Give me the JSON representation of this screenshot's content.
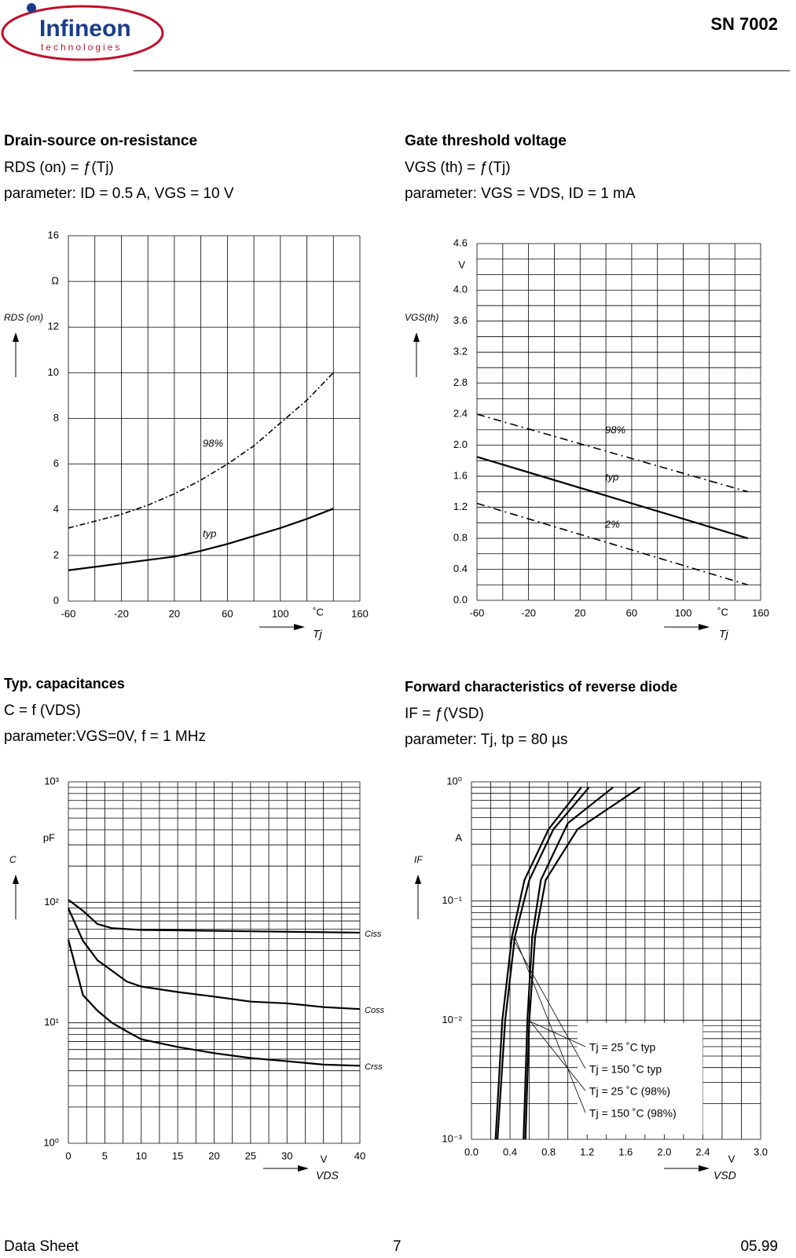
{
  "header": {
    "logo": "Infineon",
    "logo_tagline": "technologies",
    "part": "SN 7002"
  },
  "footer": {
    "left": "Data Sheet",
    "page": "7",
    "date": "05.99"
  },
  "chart_data": [
    {
      "type": "line",
      "title": "Drain-source on-resistance",
      "subtitle": "RDS (on) = ƒ(Tj)",
      "parameter": "parameter: ID = 0.5 A, VGS = 10 V",
      "y_label": "RDS (on)",
      "x_label": "Tj",
      "y_unit": "Ω",
      "x_unit": "˚C",
      "xlim": [
        -60,
        160
      ],
      "xticks": [
        -60,
        -20,
        20,
        60,
        100,
        160
      ],
      "ylim": [
        0,
        16
      ],
      "yticks": [
        0,
        2,
        4,
        6,
        8,
        10,
        12,
        16
      ],
      "xgrid": [
        -60,
        -40,
        -20,
        0,
        20,
        40,
        60,
        80,
        100,
        120,
        140,
        160
      ],
      "ygrid": [
        0,
        2,
        4,
        6,
        8,
        10,
        12,
        14,
        16
      ],
      "x": [
        -60,
        -40,
        -20,
        0,
        20,
        40,
        60,
        80,
        100,
        120,
        140
      ],
      "series": [
        {
          "name": "98%",
          "color": "#000000",
          "dash": "7,3,2,3",
          "values": [
            3.2,
            3.5,
            3.8,
            4.2,
            4.7,
            5.3,
            6.0,
            6.8,
            7.8,
            8.8,
            10.0
          ]
        },
        {
          "name": "typ",
          "color": "#000000",
          "values": [
            1.35,
            1.5,
            1.65,
            1.8,
            1.95,
            2.2,
            2.5,
            2.85,
            3.2,
            3.6,
            4.05
          ]
        }
      ]
    },
    {
      "type": "line",
      "title": "Gate threshold voltage",
      "subtitle": "VGS (th) = ƒ(Tj)",
      "parameter": "parameter: VGS = VDS, ID = 1 mA",
      "y_label": "VGS(th)",
      "x_label": "Tj",
      "y_unit": "V",
      "x_unit": "˚C",
      "xlim": [
        -60,
        160
      ],
      "xticks": [
        -60,
        -20,
        20,
        60,
        100,
        160
      ],
      "ylim": [
        0,
        4.6
      ],
      "yticks": [
        {
          "value": 0,
          "label": "0.0"
        },
        0.4,
        0.8,
        1.2,
        1.6,
        {
          "value": 2,
          "label": "2.0"
        },
        2.4,
        2.8,
        3.2,
        3.6,
        {
          "value": 4,
          "label": "4.0"
        },
        4.6
      ],
      "xgrid": [
        -60,
        -40,
        -20,
        0,
        20,
        40,
        60,
        80,
        100,
        120,
        140,
        160
      ],
      "ygrid": [
        0,
        0.2,
        0.4,
        0.6,
        0.8,
        1,
        1.2,
        1.4,
        1.6,
        1.8,
        2,
        2.2,
        2.4,
        2.6,
        2.8,
        3,
        3.2,
        3.4,
        3.6,
        3.8,
        4,
        4.2,
        4.4,
        4.6
      ],
      "x": [
        -60,
        150
      ],
      "series": [
        {
          "name": "98%",
          "color": "#000000",
          "dash": "10,5,2,5",
          "values": [
            2.4,
            1.4
          ]
        },
        {
          "name": "typ",
          "color": "#000000",
          "values": [
            1.85,
            0.8
          ]
        },
        {
          "name": "2%",
          "color": "#000000",
          "dash": "10,5,2,5",
          "values": [
            1.25,
            0.2
          ]
        }
      ]
    },
    {
      "type": "line",
      "log_y": true,
      "title": "Typ. capacitances",
      "subtitle": "C = f (VDS)",
      "parameter": "parameter:VGS=0V, f = 1 MHz",
      "y_label": "C",
      "x_label": "VDS",
      "y_unit": "pF",
      "x_unit": "V",
      "xlim": [
        0,
        40
      ],
      "xticks": [
        0,
        5,
        10,
        15,
        20,
        25,
        30,
        40
      ],
      "ylim": [
        1,
        1000
      ],
      "yticks": [
        {
          "value": 1,
          "label": "10⁰"
        },
        {
          "value": 10,
          "label": "10¹"
        },
        {
          "value": 100,
          "label": "10²"
        },
        {
          "value": 1000,
          "label": "10³"
        }
      ],
      "xgrid": [
        0,
        2.5,
        5,
        7.5,
        10,
        12.5,
        15,
        17.5,
        20,
        22.5,
        25,
        27.5,
        30,
        32.5,
        35,
        37.5,
        40
      ],
      "ygrid": [
        1,
        2,
        3,
        4,
        5,
        6,
        7,
        8,
        9,
        10,
        20,
        30,
        40,
        50,
        60,
        70,
        80,
        90,
        100,
        200,
        300,
        400,
        500,
        600,
        700,
        800,
        900,
        1000
      ],
      "x": [
        0,
        2,
        4,
        6,
        8,
        10,
        15,
        20,
        25,
        30,
        35,
        40
      ],
      "series": [
        {
          "name": "Ciss",
          "color": "#000000",
          "values": [
            105,
            85,
            66,
            61,
            60,
            59,
            58.5,
            58,
            57.5,
            57,
            56.5,
            56
          ]
        },
        {
          "name": "Coss",
          "color": "#000000",
          "values": [
            89,
            48,
            33,
            27,
            22,
            20,
            18,
            16.5,
            15,
            14.5,
            13.5,
            13
          ]
        },
        {
          "name": "Crss",
          "color": "#000000",
          "values": [
            49,
            17,
            12.6,
            10,
            8.5,
            7.3,
            6.3,
            5.6,
            5.1,
            4.8,
            4.5,
            4.4
          ]
        }
      ]
    },
    {
      "type": "line",
      "log_y": true,
      "title": "Forward characteristics of reverse diode",
      "subtitle": "IF = ƒ(VSD)",
      "parameter": "parameter: Tj, tp = 80 µs",
      "y_label": "IF",
      "x_label": "VSD",
      "y_unit": "A",
      "x_unit": "V",
      "xlim": [
        0,
        3
      ],
      "xticks": [
        {
          "value": 0,
          "label": "0.0"
        },
        0.4,
        0.8,
        1.2,
        1.6,
        {
          "value": 2,
          "label": "2.0"
        },
        2.4,
        {
          "value": 3,
          "label": "3.0"
        }
      ],
      "ylim": [
        0.001,
        1
      ],
      "yticks": [
        {
          "value": 0.001,
          "label": "10⁻³"
        },
        {
          "value": 0.01,
          "label": "10⁻²"
        },
        {
          "value": 0.1,
          "label": "10⁻¹"
        },
        {
          "value": 1,
          "label": "10⁰"
        }
      ],
      "xgrid": [
        0,
        0.2,
        0.4,
        0.6,
        0.8,
        1,
        1.2,
        1.4,
        1.6,
        1.8,
        2,
        2.2,
        2.4,
        2.6,
        2.8,
        3
      ],
      "ygrid": [
        0.001,
        0.002,
        0.003,
        0.004,
        0.005,
        0.006,
        0.007,
        0.008,
        0.009,
        0.01,
        0.02,
        0.03,
        0.04,
        0.05,
        0.06,
        0.07,
        0.08,
        0.09,
        0.1,
        0.2,
        0.3,
        0.4,
        0.5,
        0.6,
        0.7,
        0.8,
        0.9,
        1
      ],
      "series": [
        {
          "name": "Tj = 25 ˚C typ",
          "color": "#000000",
          "x": [
            0.54,
            0.58,
            0.63,
            0.72,
            1.0,
            1.47
          ],
          "values": [
            0.001,
            0.01,
            0.05,
            0.15,
            0.45,
            0.9
          ]
        },
        {
          "name": "Tj = 150 ˚C typ",
          "color": "#000000",
          "x": [
            0.25,
            0.32,
            0.42,
            0.55,
            0.8,
            1.14
          ],
          "values": [
            0.001,
            0.01,
            0.05,
            0.15,
            0.4,
            0.9
          ]
        },
        {
          "name": "Tj = 25 ˚C (98%)",
          "color": "#000000",
          "x": [
            0.56,
            0.6,
            0.66,
            0.77,
            1.1,
            1.75
          ],
          "values": [
            0.001,
            0.01,
            0.05,
            0.15,
            0.4,
            0.9
          ]
        },
        {
          "name": "Tj = 150 ˚C (98%)",
          "color": "#000000",
          "x": [
            0.27,
            0.35,
            0.45,
            0.6,
            0.85,
            1.22
          ],
          "values": [
            0.001,
            0.01,
            0.05,
            0.15,
            0.4,
            0.9
          ]
        }
      ]
    }
  ]
}
